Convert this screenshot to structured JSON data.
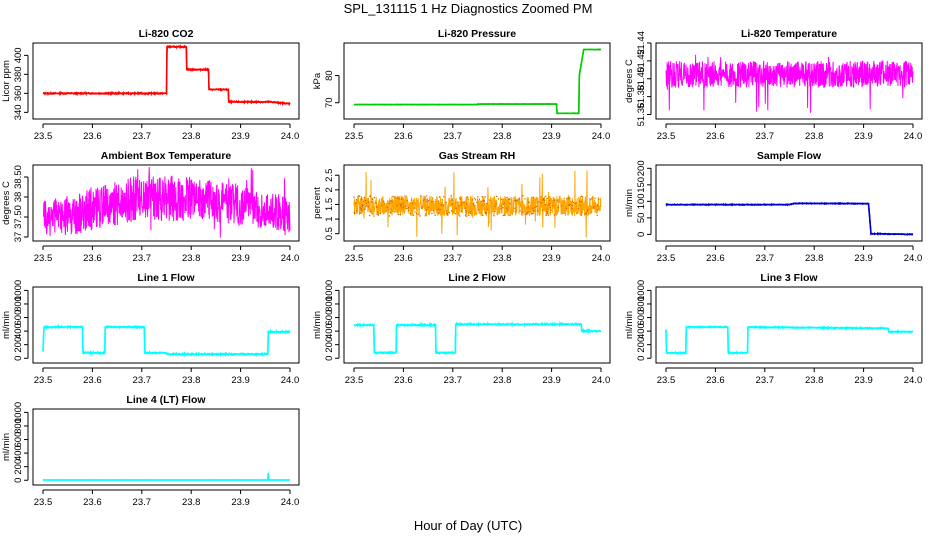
{
  "page_title": "SPL_131115  1 Hz Diagnostics Zoomed PM",
  "footer_label": "Hour of Day (UTC)",
  "chart_data": [
    {
      "type": "line",
      "title": "Li-820 CO2",
      "ylabel": "Licor ppm",
      "color": "#ff0000",
      "xlim": [
        23.5,
        24.0
      ],
      "ylim": [
        333,
        413
      ],
      "yticks": [
        340,
        360,
        380,
        400
      ],
      "xticks": [
        "23.5",
        "23.6",
        "23.7",
        "23.8",
        "23.9",
        "24.0"
      ],
      "noise": 0.8,
      "x": [
        23.5,
        23.75,
        23.751,
        23.79,
        23.791,
        23.835,
        23.836,
        23.875,
        23.876,
        23.95,
        23.96,
        23.961,
        24.0
      ],
      "y": [
        360,
        360,
        409,
        409,
        385,
        385,
        364,
        364,
        351,
        351,
        351,
        351,
        349
      ]
    },
    {
      "type": "line",
      "title": "Li-820 Pressure",
      "ylabel": "kPa",
      "color": "#00cc00",
      "xlim": [
        23.5,
        24.0
      ],
      "ylim": [
        64,
        92
      ],
      "yticks": [
        70,
        80
      ],
      "xticks": [
        "23.5",
        "23.6",
        "23.7",
        "23.8",
        "23.9",
        "24.0"
      ],
      "noise": 0.1,
      "x": [
        23.5,
        23.75,
        23.751,
        23.91,
        23.911,
        23.955,
        23.956,
        23.965,
        23.966,
        24.0
      ],
      "y": [
        69.3,
        69.3,
        69.5,
        69.5,
        66.1,
        66.1,
        80,
        89.6,
        89.6,
        89.6
      ]
    },
    {
      "type": "band",
      "title": "Li-820 Temperature",
      "ylabel": "degrees C",
      "color": "#ff00ff",
      "xlim": [
        23.5,
        24.0
      ],
      "ylim": [
        51.355,
        51.44
      ],
      "yticks": [
        51.36,
        51.38,
        51.4,
        51.42,
        51.44
      ],
      "xticks": [
        "23.5",
        "23.6",
        "23.7",
        "23.8",
        "23.9",
        "24.0"
      ],
      "x": [
        23.5,
        24.0
      ],
      "y_low": [
        51.39,
        51.39
      ],
      "y_high": [
        51.42,
        51.42
      ],
      "spike_min": 51.36,
      "spike_max": 51.44
    },
    {
      "type": "band",
      "title": "Ambient Box Temperature",
      "ylabel": "degrees C",
      "color": "#ff00ff",
      "xlim": [
        23.5,
        24.0
      ],
      "ylim": [
        36.9,
        38.8
      ],
      "yticks": [
        37.0,
        37.5,
        38.0,
        38.5
      ],
      "xticks": [
        "23.5",
        "23.6",
        "23.7",
        "23.8",
        "23.9",
        "24.0"
      ],
      "x": [
        23.5,
        23.6,
        23.7,
        23.8,
        23.9,
        24.0
      ],
      "y_low": [
        37.0,
        37.1,
        37.4,
        37.4,
        37.3,
        37.1
      ],
      "y_high": [
        37.9,
        38.2,
        38.6,
        38.5,
        38.3,
        38.0
      ],
      "spike_min": 36.95,
      "spike_max": 38.75
    },
    {
      "type": "band",
      "title": "Gas Stream RH",
      "ylabel": "percent",
      "color": "#ffa500",
      "dot_color": "#cc6600",
      "xlim": [
        23.5,
        24.0
      ],
      "ylim": [
        0.25,
        2.85
      ],
      "yticks": [
        0.5,
        1.0,
        1.5,
        2.0,
        2.5
      ],
      "xticks": [
        "23.5",
        "23.6",
        "23.7",
        "23.8",
        "23.9",
        "24.0"
      ],
      "x": [
        23.5,
        24.0
      ],
      "y_low": [
        1.1,
        1.1
      ],
      "y_high": [
        1.8,
        1.8
      ],
      "spike_min": 0.3,
      "spike_max": 2.7
    },
    {
      "type": "line",
      "title": "Sample Flow",
      "ylabel": "ml/min",
      "color": "#0000cc",
      "xlim": [
        23.5,
        24.0
      ],
      "ylim": [
        -20,
        210
      ],
      "yticks": [
        0,
        50,
        100,
        150,
        200
      ],
      "xticks": [
        "23.5",
        "23.6",
        "23.7",
        "23.8",
        "23.9",
        "24.0"
      ],
      "noise": 1.5,
      "x": [
        23.5,
        23.75,
        23.76,
        23.91,
        23.915,
        24.0
      ],
      "y": [
        90,
        90,
        94,
        93,
        2,
        0
      ]
    },
    {
      "type": "line",
      "title": "Line 1 Flow",
      "ylabel": "ml/min",
      "color": "#00ffff",
      "xlim": [
        23.5,
        24.0
      ],
      "ylim": [
        -70,
        1050
      ],
      "yticks": [
        0,
        200,
        400,
        600,
        800,
        1000
      ],
      "xticks": [
        "23.5",
        "23.6",
        "23.7",
        "23.8",
        "23.9",
        "24.0"
      ],
      "noise": 12,
      "x": [
        23.5,
        23.502,
        23.58,
        23.581,
        23.625,
        23.626,
        23.705,
        23.706,
        23.75,
        23.751,
        23.955,
        23.956,
        24.0
      ],
      "y": [
        100,
        460,
        460,
        80,
        80,
        460,
        460,
        80,
        80,
        60,
        60,
        390,
        390
      ]
    },
    {
      "type": "line",
      "title": "Line 2 Flow",
      "ylabel": "ml/min",
      "color": "#00ffff",
      "xlim": [
        23.5,
        24.0
      ],
      "ylim": [
        -70,
        1050
      ],
      "yticks": [
        0,
        200,
        400,
        600,
        800,
        1000
      ],
      "xticks": [
        "23.5",
        "23.6",
        "23.7",
        "23.8",
        "23.9",
        "24.0"
      ],
      "noise": 12,
      "x": [
        23.5,
        23.54,
        23.541,
        23.585,
        23.586,
        23.665,
        23.666,
        23.705,
        23.706,
        23.96,
        23.961,
        24.0
      ],
      "y": [
        490,
        490,
        80,
        80,
        490,
        490,
        80,
        80,
        500,
        500,
        400,
        400
      ]
    },
    {
      "type": "line",
      "title": "Line 3 Flow",
      "ylabel": "ml/min",
      "color": "#00ffff",
      "xlim": [
        23.5,
        24.0
      ],
      "ylim": [
        -70,
        1050
      ],
      "yticks": [
        0,
        200,
        400,
        600,
        800,
        1000
      ],
      "xticks": [
        "23.5",
        "23.6",
        "23.7",
        "23.8",
        "23.9",
        "24.0"
      ],
      "noise": 10,
      "x": [
        23.5,
        23.501,
        23.54,
        23.541,
        23.625,
        23.626,
        23.665,
        23.666,
        23.95,
        23.951,
        24.0
      ],
      "y": [
        420,
        80,
        80,
        460,
        460,
        80,
        80,
        460,
        440,
        390,
        390
      ]
    },
    {
      "type": "line",
      "title": "Line 4 (LT) Flow",
      "ylabel": "ml/min",
      "color": "#00ffff",
      "xlim": [
        23.5,
        24.0
      ],
      "ylim": [
        -70,
        1050
      ],
      "yticks": [
        0,
        200,
        400,
        600,
        800,
        1000
      ],
      "xticks": [
        "23.5",
        "23.6",
        "23.7",
        "23.8",
        "23.9",
        "24.0"
      ],
      "noise": 1,
      "x": [
        23.5,
        23.955,
        23.956,
        23.957,
        24.0
      ],
      "y": [
        3,
        3,
        110,
        3,
        3
      ]
    }
  ]
}
